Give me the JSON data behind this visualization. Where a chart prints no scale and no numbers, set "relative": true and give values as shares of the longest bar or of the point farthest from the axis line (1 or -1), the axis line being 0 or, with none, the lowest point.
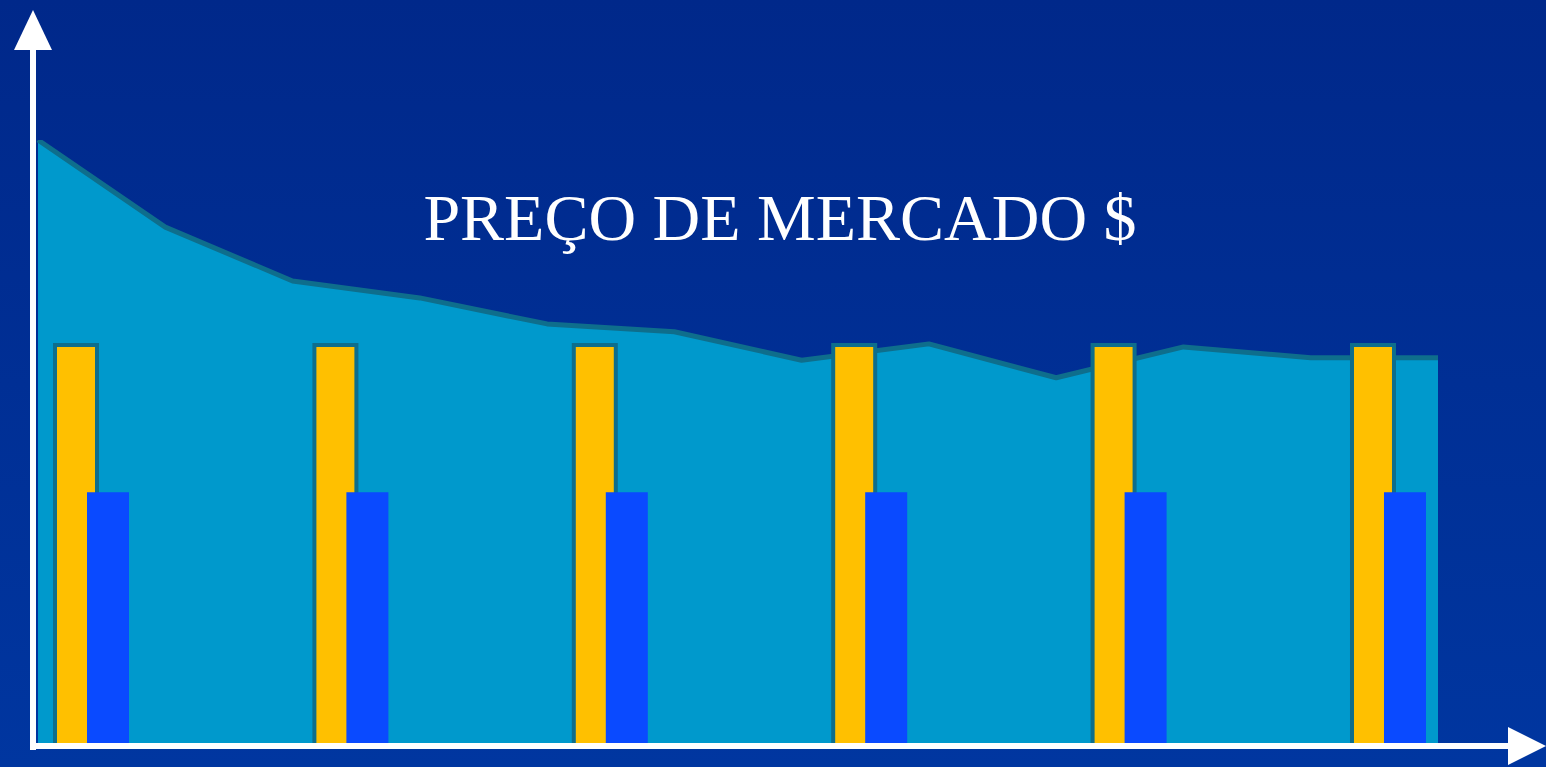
{
  "chart_data": [
    {
      "type": "area",
      "title": "PREÇO DE MERCADO $",
      "relative": true,
      "legend": false,
      "categories": [
        null,
        null,
        null,
        null,
        null,
        null,
        null,
        null,
        null,
        null,
        null,
        null
      ],
      "series": [
        {
          "color": "#0099cc",
          "values": [
            1,
            0.856,
            0.767,
            0.739,
            0.696,
            0.683,
            0.636,
            0.663,
            0.607,
            0.658,
            0.64,
            0.64
          ]
        }
      ]
    },
    {
      "type": "bar",
      "relative": true,
      "legend": false,
      "categories": [
        null,
        null,
        null,
        null,
        null,
        null
      ],
      "series": [
        {
          "color": "#ffc000",
          "values": [
            1,
            1,
            1,
            1,
            1,
            1
          ]
        },
        {
          "color": "#0a4aff",
          "values": [
            0.632,
            0.632,
            0.632,
            0.632,
            0.632,
            0.632
          ]
        }
      ]
    }
  ]
}
